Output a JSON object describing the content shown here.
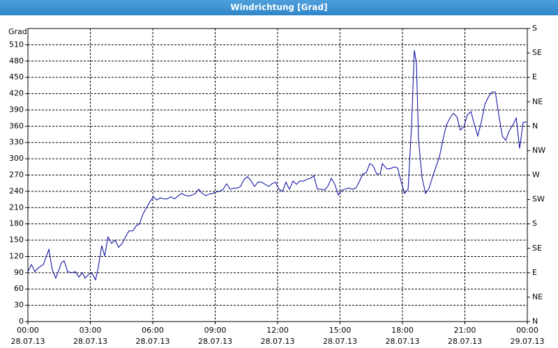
{
  "chart_data": {
    "type": "line",
    "title": "Windrichtung [Grad]",
    "y_label": "Grad",
    "x": [
      0,
      0.17,
      0.34,
      0.5,
      0.74,
      1.01,
      1.17,
      1.34,
      1.61,
      1.74,
      1.91,
      2.11,
      2.28,
      2.45,
      2.61,
      2.75,
      2.92,
      3.08,
      3.25,
      3.39,
      3.55,
      3.69,
      3.85,
      4.02,
      4.19,
      4.36,
      4.53,
      4.69,
      4.86,
      5.03,
      5.2,
      5.36,
      5.53,
      5.7,
      5.87,
      6.03,
      6.2,
      6.37,
      6.54,
      6.7,
      6.87,
      7.04,
      7.21,
      7.38,
      7.54,
      7.71,
      7.88,
      8.05,
      8.21,
      8.38,
      8.55,
      8.72,
      8.88,
      9.05,
      9.22,
      9.39,
      9.55,
      9.72,
      9.89,
      10.06,
      10.22,
      10.39,
      10.56,
      10.73,
      10.89,
      11.06,
      11.23,
      11.4,
      11.57,
      11.73,
      11.9,
      12.07,
      12.24,
      12.4,
      12.57,
      12.74,
      12.91,
      13.07,
      13.24,
      13.41,
      13.58,
      13.74,
      13.91,
      14.08,
      14.25,
      14.41,
      14.58,
      14.75,
      14.92,
      15.09,
      15.25,
      15.42,
      15.59,
      15.76,
      15.92,
      16.09,
      16.26,
      16.43,
      16.59,
      16.76,
      16.93,
      17.03,
      17.26,
      17.43,
      17.6,
      17.77,
      17.93,
      18.1,
      18.27,
      18.44,
      18.57,
      18.67,
      18.77,
      18.94,
      19.11,
      19.28,
      19.44,
      19.61,
      19.78,
      19.95,
      20.11,
      20.28,
      20.45,
      20.62,
      20.78,
      20.95,
      21.12,
      21.29,
      21.45,
      21.62,
      21.79,
      21.96,
      22.12,
      22.29,
      22.46,
      22.63,
      22.8,
      22.96,
      23.13,
      23.3,
      23.47,
      23.63,
      23.8,
      23.97
    ],
    "series": [
      {
        "color": "#0000a0",
        "values": [
          92,
          105,
          92,
          99,
          105,
          133,
          96,
          80,
          108,
          112,
          92,
          90,
          92,
          82,
          90,
          80,
          87,
          89,
          77,
          101,
          140,
          121,
          156,
          144,
          150,
          137,
          144,
          156,
          167,
          167,
          176,
          180,
          198,
          210,
          221,
          230,
          224,
          228,
          226,
          226,
          230,
          226,
          231,
          236,
          233,
          231,
          233,
          236,
          244,
          236,
          232,
          235,
          236,
          239,
          240,
          244,
          254,
          244,
          246,
          246,
          249,
          262,
          267,
          259,
          249,
          257,
          257,
          253,
          249,
          254,
          257,
          244,
          240,
          257,
          244,
          259,
          253,
          259,
          259,
          262,
          264,
          269,
          244,
          244,
          242,
          249,
          264,
          253,
          233,
          242,
          244,
          246,
          244,
          246,
          257,
          272,
          274,
          291,
          287,
          272,
          272,
          291,
          281,
          282,
          285,
          283,
          259,
          236,
          244,
          362,
          500,
          477,
          336,
          266,
          236,
          246,
          266,
          285,
          304,
          336,
          362,
          375,
          384,
          377,
          353,
          359,
          381,
          387,
          364,
          342,
          368,
          400,
          413,
          423,
          423,
          381,
          342,
          334,
          351,
          362,
          375,
          319,
          367,
          368
        ]
      }
    ],
    "xlim": [
      0,
      24
    ],
    "xticks": [
      {
        "value": 0,
        "label": "00:00",
        "date": "28.07.13"
      },
      {
        "value": 3,
        "label": "03:00",
        "date": "28.07.13"
      },
      {
        "value": 6,
        "label": "06:00",
        "date": "28.07.13"
      },
      {
        "value": 9,
        "label": "09:00",
        "date": "28.07.13"
      },
      {
        "value": 12,
        "label": "12:00",
        "date": "28.07.13"
      },
      {
        "value": 15,
        "label": "15:00",
        "date": "28.07.13"
      },
      {
        "value": 18,
        "label": "18:00",
        "date": "28.07.13"
      },
      {
        "value": 21,
        "label": "21:00",
        "date": "28.07.13"
      },
      {
        "value": 24,
        "label": "00:00",
        "date": "29.07.13"
      }
    ],
    "ylim": [
      0,
      540
    ],
    "yticks": [
      0,
      30,
      60,
      90,
      120,
      150,
      180,
      210,
      240,
      270,
      300,
      330,
      360,
      390,
      420,
      450,
      480,
      510
    ],
    "y2lim": [
      0,
      540
    ],
    "y2ticks": [
      {
        "value": 0,
        "label": "N"
      },
      {
        "value": 45,
        "label": "NE"
      },
      {
        "value": 90,
        "label": "E"
      },
      {
        "value": 135,
        "label": "SE"
      },
      {
        "value": 180,
        "label": "S"
      },
      {
        "value": 225,
        "label": "SW"
      },
      {
        "value": 270,
        "label": "W"
      },
      {
        "value": 315,
        "label": "NW"
      },
      {
        "value": 360,
        "label": "N"
      },
      {
        "value": 405,
        "label": "NE"
      },
      {
        "value": 450,
        "label": "E"
      },
      {
        "value": 495,
        "label": "SE"
      },
      {
        "value": 540,
        "label": "S"
      }
    ],
    "grid": true
  }
}
